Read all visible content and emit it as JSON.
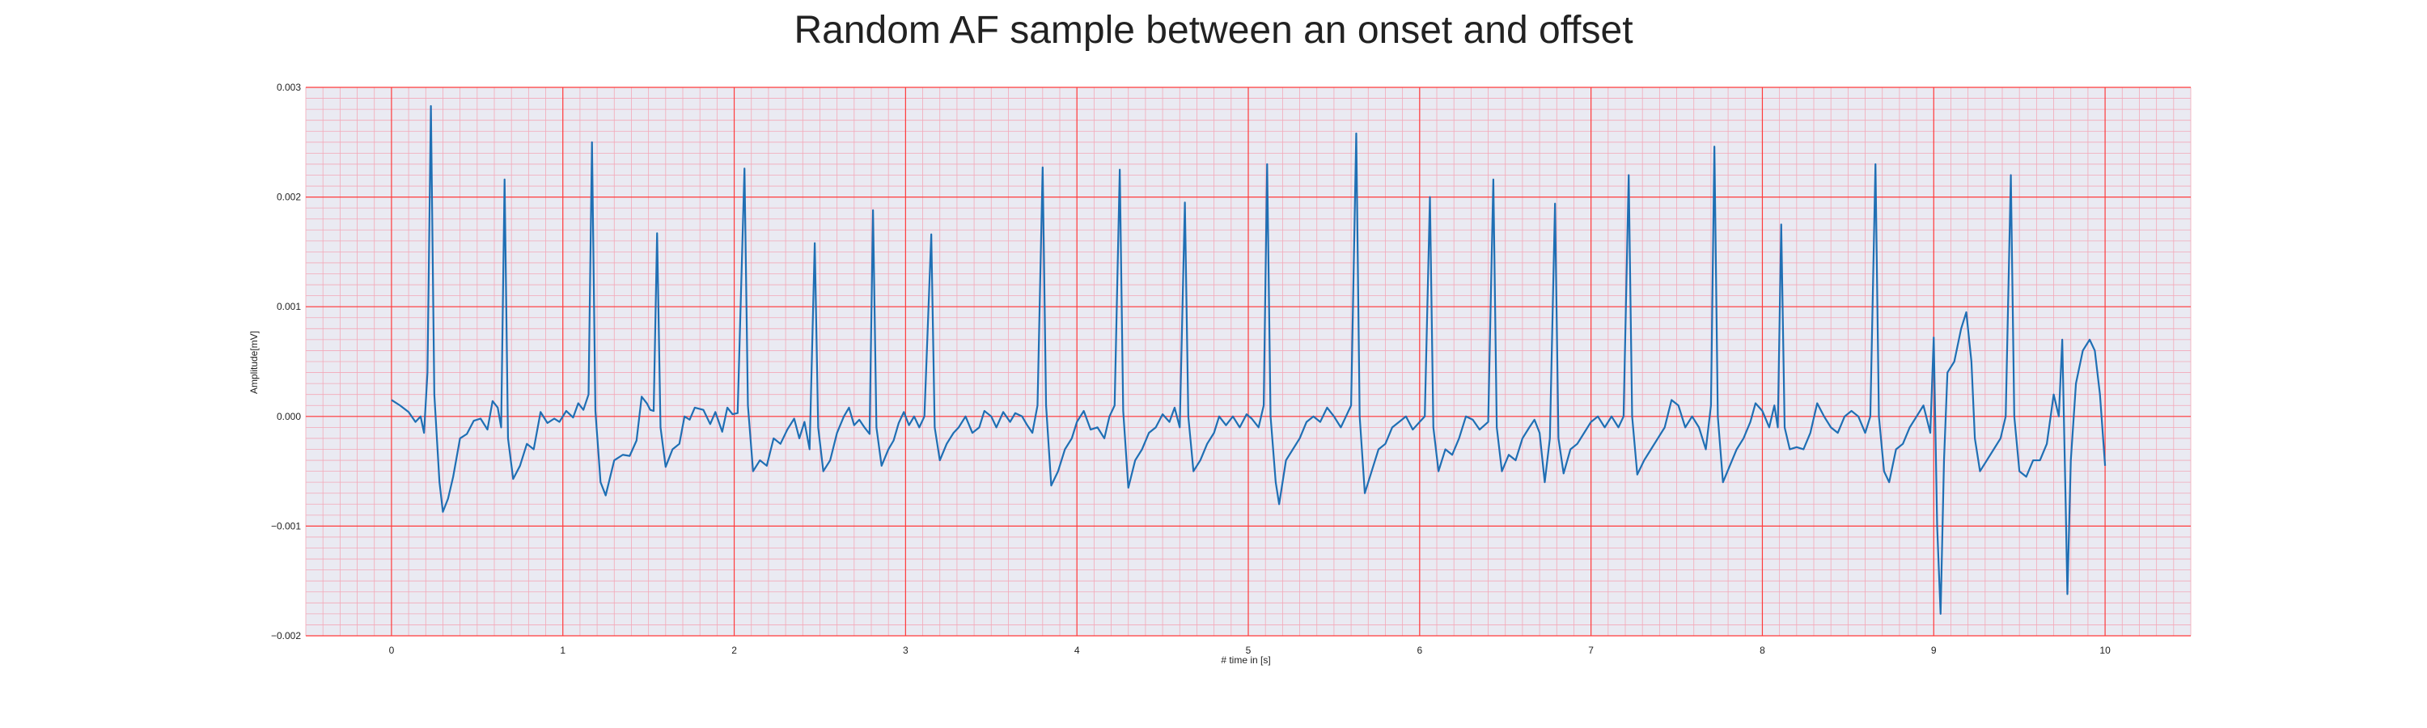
{
  "chart_data": {
    "type": "line",
    "title": "Random AF sample between an onset and offset",
    "xlabel": "# time in [s]",
    "ylabel": "Amplitude[mV]",
    "xlim": [
      -0.5,
      10.5
    ],
    "ylim": [
      -0.002,
      0.003
    ],
    "xticks": [
      0,
      1,
      2,
      3,
      4,
      5,
      6,
      7,
      8,
      9,
      10
    ],
    "xtick_labels": [
      "0",
      "1",
      "2",
      "3",
      "4",
      "5",
      "6",
      "7",
      "8",
      "9",
      "10"
    ],
    "yticks": [
      -0.002,
      -0.001,
      0.0,
      0.001,
      0.002,
      0.003
    ],
    "ytick_labels": [
      "−0.002",
      "−0.001",
      "0.000",
      "0.001",
      "0.002",
      "0.003"
    ],
    "grid": true,
    "minor_grid": true,
    "legend": "none",
    "colors": {
      "background": "#eaeaf2",
      "major_grid": "#ff3b3b",
      "minor_grid": "#f3a8b8",
      "line": "#1f6fb4"
    },
    "series": [
      {
        "values": [
          [
            0.0,
            0.00015
          ],
          [
            0.05,
            0.0001
          ],
          [
            0.1,
            4e-05
          ],
          [
            0.14,
            -5e-05
          ],
          [
            0.17,
            0.0
          ],
          [
            0.19,
            -0.00015
          ],
          [
            0.21,
            0.0004
          ],
          [
            0.23,
            0.00283
          ],
          [
            0.25,
            0.0002
          ],
          [
            0.28,
            -0.0006
          ],
          [
            0.3,
            -0.00087
          ],
          [
            0.33,
            -0.00075
          ],
          [
            0.36,
            -0.00055
          ],
          [
            0.4,
            -0.0002
          ],
          [
            0.44,
            -0.00016
          ],
          [
            0.48,
            -4e-05
          ],
          [
            0.52,
            -2e-05
          ],
          [
            0.56,
            -0.00012
          ],
          [
            0.59,
            0.00014
          ],
          [
            0.62,
            8e-05
          ],
          [
            0.64,
            -0.0001
          ],
          [
            0.66,
            0.00216
          ],
          [
            0.68,
            -0.0002
          ],
          [
            0.71,
            -0.00057
          ],
          [
            0.75,
            -0.00045
          ],
          [
            0.79,
            -0.00025
          ],
          [
            0.83,
            -0.0003
          ],
          [
            0.87,
            4e-05
          ],
          [
            0.91,
            -6e-05
          ],
          [
            0.95,
            -2e-05
          ],
          [
            0.98,
            -5e-05
          ],
          [
            1.02,
            5e-05
          ],
          [
            1.06,
            -1e-05
          ],
          [
            1.09,
            0.00012
          ],
          [
            1.12,
            6e-05
          ],
          [
            1.15,
            0.0002
          ],
          [
            1.17,
            0.0025
          ],
          [
            1.19,
            5e-05
          ],
          [
            1.22,
            -0.0006
          ],
          [
            1.25,
            -0.00072
          ],
          [
            1.3,
            -0.0004
          ],
          [
            1.35,
            -0.00035
          ],
          [
            1.39,
            -0.00036
          ],
          [
            1.43,
            -0.00022
          ],
          [
            1.46,
            0.00018
          ],
          [
            1.49,
            0.00012
          ],
          [
            1.51,
            6e-05
          ],
          [
            1.53,
            5e-05
          ],
          [
            1.55,
            0.00167
          ],
          [
            1.57,
            -0.0001
          ],
          [
            1.6,
            -0.00046
          ],
          [
            1.64,
            -0.0003
          ],
          [
            1.68,
            -0.00025
          ],
          [
            1.71,
            0.0
          ],
          [
            1.74,
            -3e-05
          ],
          [
            1.77,
            8e-05
          ],
          [
            1.82,
            6e-05
          ],
          [
            1.86,
            -7e-05
          ],
          [
            1.89,
            4e-05
          ],
          [
            1.93,
            -0.00014
          ],
          [
            1.96,
            8e-05
          ],
          [
            1.99,
            2e-05
          ],
          [
            2.02,
            3e-05
          ],
          [
            2.06,
            0.00226
          ],
          [
            2.08,
            0.0001
          ],
          [
            2.11,
            -0.0005
          ],
          [
            2.15,
            -0.0004
          ],
          [
            2.19,
            -0.00045
          ],
          [
            2.23,
            -0.0002
          ],
          [
            2.27,
            -0.00025
          ],
          [
            2.31,
            -0.00012
          ],
          [
            2.35,
            -2e-05
          ],
          [
            2.38,
            -0.0002
          ],
          [
            2.41,
            -5e-05
          ],
          [
            2.44,
            -0.0003
          ],
          [
            2.47,
            0.00158
          ],
          [
            2.49,
            -0.0001
          ],
          [
            2.52,
            -0.0005
          ],
          [
            2.56,
            -0.0004
          ],
          [
            2.6,
            -0.00015
          ],
          [
            2.64,
            0.0
          ],
          [
            2.67,
            8e-05
          ],
          [
            2.7,
            -8e-05
          ],
          [
            2.73,
            -3e-05
          ],
          [
            2.76,
            -0.0001
          ],
          [
            2.79,
            -0.00016
          ],
          [
            2.81,
            0.00188
          ],
          [
            2.83,
            -0.0001
          ],
          [
            2.86,
            -0.00045
          ],
          [
            2.9,
            -0.0003
          ],
          [
            2.93,
            -0.00022
          ],
          [
            2.96,
            -6e-05
          ],
          [
            2.99,
            4e-05
          ],
          [
            3.02,
            -8e-05
          ],
          [
            3.05,
            0.0
          ],
          [
            3.08,
            -0.0001
          ],
          [
            3.11,
            0.0
          ],
          [
            3.15,
            0.00166
          ],
          [
            3.17,
            -0.0001
          ],
          [
            3.2,
            -0.0004
          ],
          [
            3.24,
            -0.00025
          ],
          [
            3.28,
            -0.00015
          ],
          [
            3.31,
            -0.0001
          ],
          [
            3.35,
            0.0
          ],
          [
            3.39,
            -0.00015
          ],
          [
            3.43,
            -0.0001
          ],
          [
            3.46,
            5e-05
          ],
          [
            3.5,
            0.0
          ],
          [
            3.53,
            -0.0001
          ],
          [
            3.57,
            4e-05
          ],
          [
            3.61,
            -5e-05
          ],
          [
            3.64,
            3e-05
          ],
          [
            3.68,
            0.0
          ],
          [
            3.71,
            -8e-05
          ],
          [
            3.74,
            -0.00015
          ],
          [
            3.77,
            0.0001
          ],
          [
            3.8,
            0.00227
          ],
          [
            3.82,
            0.0001
          ],
          [
            3.85,
            -0.00063
          ],
          [
            3.89,
            -0.0005
          ],
          [
            3.93,
            -0.0003
          ],
          [
            3.97,
            -0.0002
          ],
          [
            4.0,
            -5e-05
          ],
          [
            4.04,
            5e-05
          ],
          [
            4.08,
            -0.00012
          ],
          [
            4.12,
            -0.0001
          ],
          [
            4.16,
            -0.0002
          ],
          [
            4.19,
            0.0
          ],
          [
            4.22,
            0.0001
          ],
          [
            4.25,
            0.00225
          ],
          [
            4.27,
            5e-05
          ],
          [
            4.3,
            -0.00065
          ],
          [
            4.34,
            -0.0004
          ],
          [
            4.38,
            -0.0003
          ],
          [
            4.42,
            -0.00015
          ],
          [
            4.46,
            -0.0001
          ],
          [
            4.5,
            2e-05
          ],
          [
            4.54,
            -5e-05
          ],
          [
            4.57,
            8e-05
          ],
          [
            4.6,
            -0.0001
          ],
          [
            4.63,
            0.00195
          ],
          [
            4.65,
            0.0
          ],
          [
            4.68,
            -0.0005
          ],
          [
            4.72,
            -0.0004
          ],
          [
            4.76,
            -0.00025
          ],
          [
            4.8,
            -0.00015
          ],
          [
            4.83,
            0.0
          ],
          [
            4.87,
            -8e-05
          ],
          [
            4.91,
            0.0
          ],
          [
            4.95,
            -0.0001
          ],
          [
            4.99,
            2e-05
          ],
          [
            5.02,
            -2e-05
          ],
          [
            5.06,
            -0.0001
          ],
          [
            5.09,
            0.0001
          ],
          [
            5.11,
            0.0023
          ],
          [
            5.13,
            0.0
          ],
          [
            5.16,
            -0.0006
          ],
          [
            5.18,
            -0.0008
          ],
          [
            5.22,
            -0.0004
          ],
          [
            5.26,
            -0.0003
          ],
          [
            5.3,
            -0.0002
          ],
          [
            5.34,
            -5e-05
          ],
          [
            5.38,
            0.0
          ],
          [
            5.42,
            -5e-05
          ],
          [
            5.46,
            8e-05
          ],
          [
            5.5,
            0.0
          ],
          [
            5.54,
            -0.0001
          ],
          [
            5.57,
            0.0
          ],
          [
            5.6,
            0.0001
          ],
          [
            5.63,
            0.00258
          ],
          [
            5.65,
            0.0
          ],
          [
            5.68,
            -0.0007
          ],
          [
            5.72,
            -0.0005
          ],
          [
            5.76,
            -0.0003
          ],
          [
            5.8,
            -0.00025
          ],
          [
            5.84,
            -0.0001
          ],
          [
            5.88,
            -5e-05
          ],
          [
            5.92,
            0.0
          ],
          [
            5.96,
            -0.00012
          ],
          [
            6.0,
            -5e-05
          ],
          [
            6.03,
            0.0
          ],
          [
            6.06,
            0.002
          ],
          [
            6.08,
            -0.0001
          ],
          [
            6.11,
            -0.0005
          ],
          [
            6.15,
            -0.0003
          ],
          [
            6.19,
            -0.00035
          ],
          [
            6.23,
            -0.0002
          ],
          [
            6.27,
            0.0
          ],
          [
            6.31,
            -3e-05
          ],
          [
            6.35,
            -0.00012
          ],
          [
            6.4,
            -5e-05
          ],
          [
            6.43,
            0.00216
          ],
          [
            6.45,
            -0.0001
          ],
          [
            6.48,
            -0.0005
          ],
          [
            6.52,
            -0.00035
          ],
          [
            6.56,
            -0.0004
          ],
          [
            6.6,
            -0.0002
          ],
          [
            6.64,
            -0.0001
          ],
          [
            6.67,
            -3e-05
          ],
          [
            6.7,
            -0.00015
          ],
          [
            6.73,
            -0.0006
          ],
          [
            6.76,
            -0.0002
          ],
          [
            6.79,
            0.00194
          ],
          [
            6.81,
            -0.0002
          ],
          [
            6.84,
            -0.00052
          ],
          [
            6.88,
            -0.0003
          ],
          [
            6.92,
            -0.00025
          ],
          [
            6.96,
            -0.00015
          ],
          [
            7.0,
            -5e-05
          ],
          [
            7.04,
            0.0
          ],
          [
            7.08,
            -0.0001
          ],
          [
            7.12,
            0.0
          ],
          [
            7.16,
            -0.0001
          ],
          [
            7.19,
            0.0
          ],
          [
            7.22,
            0.0022
          ],
          [
            7.24,
            0.0
          ],
          [
            7.27,
            -0.00053
          ],
          [
            7.31,
            -0.0004
          ],
          [
            7.35,
            -0.0003
          ],
          [
            7.39,
            -0.0002
          ],
          [
            7.43,
            -0.0001
          ],
          [
            7.47,
            0.00015
          ],
          [
            7.51,
            0.0001
          ],
          [
            7.55,
            -0.0001
          ],
          [
            7.59,
            0.0
          ],
          [
            7.63,
            -0.0001
          ],
          [
            7.67,
            -0.0003
          ],
          [
            7.7,
            0.0001
          ],
          [
            7.72,
            0.00246
          ],
          [
            7.74,
            0.0
          ],
          [
            7.77,
            -0.0006
          ],
          [
            7.81,
            -0.00045
          ],
          [
            7.85,
            -0.0003
          ],
          [
            7.89,
            -0.0002
          ],
          [
            7.93,
            -5e-05
          ],
          [
            7.96,
            0.00012
          ],
          [
            8.0,
            5e-05
          ],
          [
            8.04,
            -0.0001
          ],
          [
            8.07,
            0.0001
          ],
          [
            8.09,
            -0.0001
          ],
          [
            8.11,
            0.00175
          ],
          [
            8.13,
            -0.0001
          ],
          [
            8.16,
            -0.0003
          ],
          [
            8.2,
            -0.00028
          ],
          [
            8.24,
            -0.0003
          ],
          [
            8.28,
            -0.00015
          ],
          [
            8.32,
            0.00012
          ],
          [
            8.36,
            0.0
          ],
          [
            8.4,
            -0.0001
          ],
          [
            8.44,
            -0.00015
          ],
          [
            8.48,
            0.0
          ],
          [
            8.52,
            5e-05
          ],
          [
            8.56,
            0.0
          ],
          [
            8.6,
            -0.00015
          ],
          [
            8.63,
            0.0
          ],
          [
            8.66,
            0.0023
          ],
          [
            8.68,
            0.0
          ],
          [
            8.71,
            -0.0005
          ],
          [
            8.74,
            -0.0006
          ],
          [
            8.78,
            -0.0003
          ],
          [
            8.82,
            -0.00025
          ],
          [
            8.86,
            -0.0001
          ],
          [
            8.9,
            0.0
          ],
          [
            8.94,
            0.0001
          ],
          [
            8.98,
            -0.00015
          ],
          [
            9.0,
            0.00072
          ],
          [
            9.02,
            -0.001
          ],
          [
            9.04,
            -0.0018
          ],
          [
            9.06,
            -0.0004
          ],
          [
            9.08,
            0.0004
          ],
          [
            9.12,
            0.0005
          ],
          [
            9.16,
            0.0008
          ],
          [
            9.19,
            0.00095
          ],
          [
            9.22,
            0.0005
          ],
          [
            9.24,
            -0.0002
          ],
          [
            9.27,
            -0.0005
          ],
          [
            9.31,
            -0.0004
          ],
          [
            9.35,
            -0.0003
          ],
          [
            9.39,
            -0.0002
          ],
          [
            9.42,
            0.0
          ],
          [
            9.45,
            0.0022
          ],
          [
            9.47,
            0.0
          ],
          [
            9.5,
            -0.0005
          ],
          [
            9.54,
            -0.00055
          ],
          [
            9.58,
            -0.0004
          ],
          [
            9.62,
            -0.0004
          ],
          [
            9.66,
            -0.00025
          ],
          [
            9.7,
            0.0002
          ],
          [
            9.73,
            0.0
          ],
          [
            9.75,
            0.0007
          ],
          [
            9.77,
            -0.0008
          ],
          [
            9.78,
            -0.00162
          ],
          [
            9.8,
            -0.0004
          ],
          [
            9.83,
            0.0003
          ],
          [
            9.87,
            0.0006
          ],
          [
            9.91,
            0.0007
          ],
          [
            9.94,
            0.0006
          ],
          [
            9.97,
            0.0002
          ],
          [
            10.0,
            -0.00045
          ]
        ]
      }
    ]
  }
}
